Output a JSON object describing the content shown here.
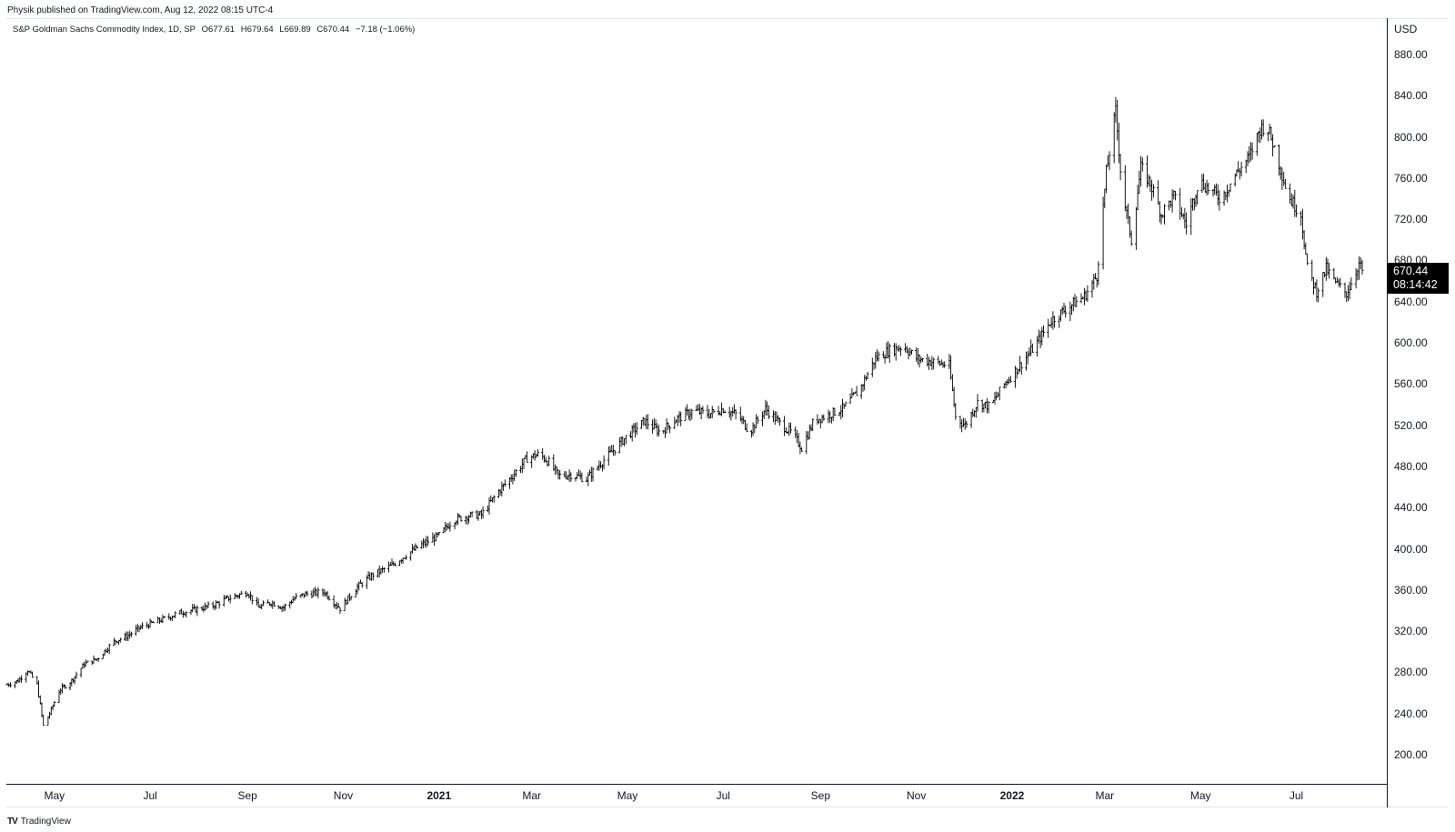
{
  "header": {
    "credit": "Physik published on TradingView.com, Aug 12, 2022 08:15 UTC-4"
  },
  "legend": {
    "symbol": "S&P Goldman Sachs Commodity Index, 1D, SP",
    "open": "O677.61",
    "high": "H679.64",
    "low": "L669.89",
    "close": "C670.44",
    "change": "−7.18 (−1.06%)"
  },
  "price_axis": {
    "currency": "USD",
    "last_price": "670.44",
    "countdown": "08:14:42"
  },
  "footer": {
    "brand": "TradingView"
  },
  "colors": {
    "bars": "#000000",
    "axis": "#131722",
    "badge_bg": "#000000"
  },
  "chart_data": {
    "type": "ohlc",
    "title": "S&P Goldman Sachs Commodity Index, 1D, SP",
    "ylabel": "USD",
    "ylim": [
      180,
      900
    ],
    "yticks": [
      "200.00",
      "240.00",
      "280.00",
      "320.00",
      "360.00",
      "400.00",
      "440.00",
      "480.00",
      "520.00",
      "560.00",
      "600.00",
      "640.00",
      "680.00",
      "720.00",
      "760.00",
      "800.00",
      "840.00",
      "880.00"
    ],
    "xticks": [
      {
        "label": "May",
        "date": "2020-05-01",
        "bold": false
      },
      {
        "label": "Jul",
        "date": "2020-07-01",
        "bold": false
      },
      {
        "label": "Sep",
        "date": "2020-09-01",
        "bold": false
      },
      {
        "label": "Nov",
        "date": "2020-11-01",
        "bold": false
      },
      {
        "label": "2021",
        "date": "2021-01-01",
        "bold": true
      },
      {
        "label": "Mar",
        "date": "2021-03-01",
        "bold": false
      },
      {
        "label": "May",
        "date": "2021-05-01",
        "bold": false
      },
      {
        "label": "Jul",
        "date": "2021-07-01",
        "bold": false
      },
      {
        "label": "Sep",
        "date": "2021-09-01",
        "bold": false
      },
      {
        "label": "Nov",
        "date": "2021-11-01",
        "bold": false
      },
      {
        "label": "2022",
        "date": "2022-01-01",
        "bold": true
      },
      {
        "label": "Mar",
        "date": "2022-03-01",
        "bold": false
      },
      {
        "label": "May",
        "date": "2022-05-01",
        "bold": false
      },
      {
        "label": "Jul",
        "date": "2022-07-01",
        "bold": false
      }
    ],
    "xrange": [
      "2020-04-01",
      "2022-08-12"
    ],
    "series": [
      {
        "close_path": [
          [
            "2020-04-01",
            268
          ],
          [
            "2020-04-08",
            272
          ],
          [
            "2020-04-14",
            282
          ],
          [
            "2020-04-20",
            268
          ],
          [
            "2020-04-24",
            228
          ],
          [
            "2020-04-28",
            240
          ],
          [
            "2020-05-04",
            262
          ],
          [
            "2020-05-12",
            272
          ],
          [
            "2020-05-20",
            288
          ],
          [
            "2020-05-28",
            293
          ],
          [
            "2020-06-08",
            310
          ],
          [
            "2020-06-16",
            315
          ],
          [
            "2020-06-24",
            323
          ],
          [
            "2020-07-01",
            327
          ],
          [
            "2020-07-10",
            332
          ],
          [
            "2020-07-20",
            338
          ],
          [
            "2020-07-30",
            341
          ],
          [
            "2020-08-10",
            345
          ],
          [
            "2020-08-20",
            352
          ],
          [
            "2020-09-01",
            358
          ],
          [
            "2020-09-08",
            343
          ],
          [
            "2020-09-16",
            348
          ],
          [
            "2020-09-24",
            343
          ],
          [
            "2020-10-01",
            352
          ],
          [
            "2020-10-08",
            356
          ],
          [
            "2020-10-20",
            358
          ],
          [
            "2020-10-30",
            342
          ],
          [
            "2020-11-10",
            363
          ],
          [
            "2020-11-20",
            375
          ],
          [
            "2020-12-01",
            383
          ],
          [
            "2020-12-10",
            393
          ],
          [
            "2020-12-20",
            403
          ],
          [
            "2021-01-01",
            413
          ],
          [
            "2021-01-10",
            428
          ],
          [
            "2021-01-20",
            432
          ],
          [
            "2021-01-28",
            433
          ],
          [
            "2021-02-08",
            456
          ],
          [
            "2021-02-18",
            473
          ],
          [
            "2021-02-26",
            488
          ],
          [
            "2021-03-06",
            492
          ],
          [
            "2021-03-12",
            484
          ],
          [
            "2021-03-18",
            471
          ],
          [
            "2021-03-26",
            472
          ],
          [
            "2021-04-05",
            468
          ],
          [
            "2021-04-14",
            483
          ],
          [
            "2021-04-24",
            499
          ],
          [
            "2021-05-01",
            510
          ],
          [
            "2021-05-12",
            524
          ],
          [
            "2021-05-22",
            513
          ],
          [
            "2021-06-01",
            526
          ],
          [
            "2021-06-12",
            534
          ],
          [
            "2021-06-22",
            531
          ],
          [
            "2021-07-01",
            536
          ],
          [
            "2021-07-10",
            530
          ],
          [
            "2021-07-18",
            514
          ],
          [
            "2021-07-28",
            536
          ],
          [
            "2021-08-06",
            522
          ],
          [
            "2021-08-14",
            512
          ],
          [
            "2021-08-20",
            498
          ],
          [
            "2021-08-28",
            525
          ],
          [
            "2021-09-06",
            530
          ],
          [
            "2021-09-16",
            537
          ],
          [
            "2021-09-26",
            555
          ],
          [
            "2021-10-06",
            585
          ],
          [
            "2021-10-14",
            592
          ],
          [
            "2021-10-24",
            597
          ],
          [
            "2021-11-01",
            585
          ],
          [
            "2021-11-10",
            582
          ],
          [
            "2021-11-22",
            578
          ],
          [
            "2021-11-26",
            528
          ],
          [
            "2021-12-02",
            520
          ],
          [
            "2021-12-10",
            542
          ],
          [
            "2021-12-18",
            538
          ],
          [
            "2021-12-28",
            562
          ],
          [
            "2022-01-06",
            578
          ],
          [
            "2022-01-16",
            598
          ],
          [
            "2022-01-26",
            622
          ],
          [
            "2022-02-06",
            635
          ],
          [
            "2022-02-16",
            645
          ],
          [
            "2022-02-24",
            665
          ],
          [
            "2022-03-02",
            765
          ],
          [
            "2022-03-08",
            825
          ],
          [
            "2022-03-12",
            750
          ],
          [
            "2022-03-18",
            700
          ],
          [
            "2022-03-24",
            770
          ],
          [
            "2022-03-30",
            755
          ],
          [
            "2022-04-06",
            725
          ],
          [
            "2022-04-14",
            742
          ],
          [
            "2022-04-22",
            715
          ],
          [
            "2022-04-30",
            758
          ],
          [
            "2022-05-06",
            750
          ],
          [
            "2022-05-14",
            740
          ],
          [
            "2022-05-24",
            765
          ],
          [
            "2022-06-01",
            780
          ],
          [
            "2022-06-08",
            808
          ],
          [
            "2022-06-12",
            812
          ],
          [
            "2022-06-18",
            785
          ],
          [
            "2022-06-26",
            742
          ],
          [
            "2022-07-04",
            725
          ],
          [
            "2022-07-08",
            672
          ],
          [
            "2022-07-14",
            650
          ],
          [
            "2022-07-20",
            672
          ],
          [
            "2022-07-26",
            658
          ],
          [
            "2022-08-02",
            648
          ],
          [
            "2022-08-06",
            662
          ],
          [
            "2022-08-10",
            677
          ],
          [
            "2022-08-12",
            670
          ]
        ]
      }
    ],
    "last": {
      "open": 677.61,
      "high": 679.64,
      "low": 669.89,
      "close": 670.44,
      "change": -7.18,
      "change_pct": -1.06
    }
  }
}
